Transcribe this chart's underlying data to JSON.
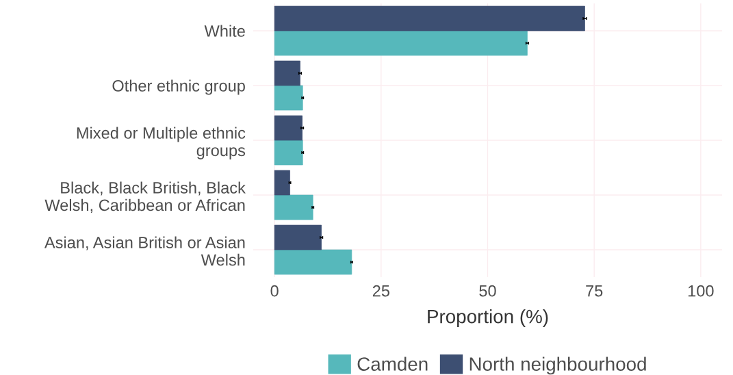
{
  "chart_data": {
    "type": "bar",
    "orientation": "horizontal",
    "xlabel": "Proportion (%)",
    "categories": [
      "White",
      "Other ethnic group",
      "Mixed or Multiple ethnic\ngroups",
      "Black, Black British, Black\nWelsh, Caribbean or African",
      "Asian, Asian British or Asian\nWelsh"
    ],
    "series": [
      {
        "name": "Camden",
        "color": "#56b8bb",
        "values": [
          59.3,
          6.6,
          6.6,
          9.0,
          18.1
        ],
        "errors": [
          0.3,
          0.2,
          0.2,
          0.2,
          0.2
        ]
      },
      {
        "name": "North neighbourhood",
        "color": "#3d4f72",
        "values": [
          72.8,
          6.0,
          6.5,
          3.6,
          11.0
        ],
        "errors": [
          0.4,
          0.3,
          0.3,
          0.2,
          0.3
        ]
      }
    ],
    "xlim": [
      -5,
      105
    ],
    "xticks": [
      0,
      25,
      50,
      75,
      100
    ],
    "grid": true,
    "legend": "bottom"
  }
}
